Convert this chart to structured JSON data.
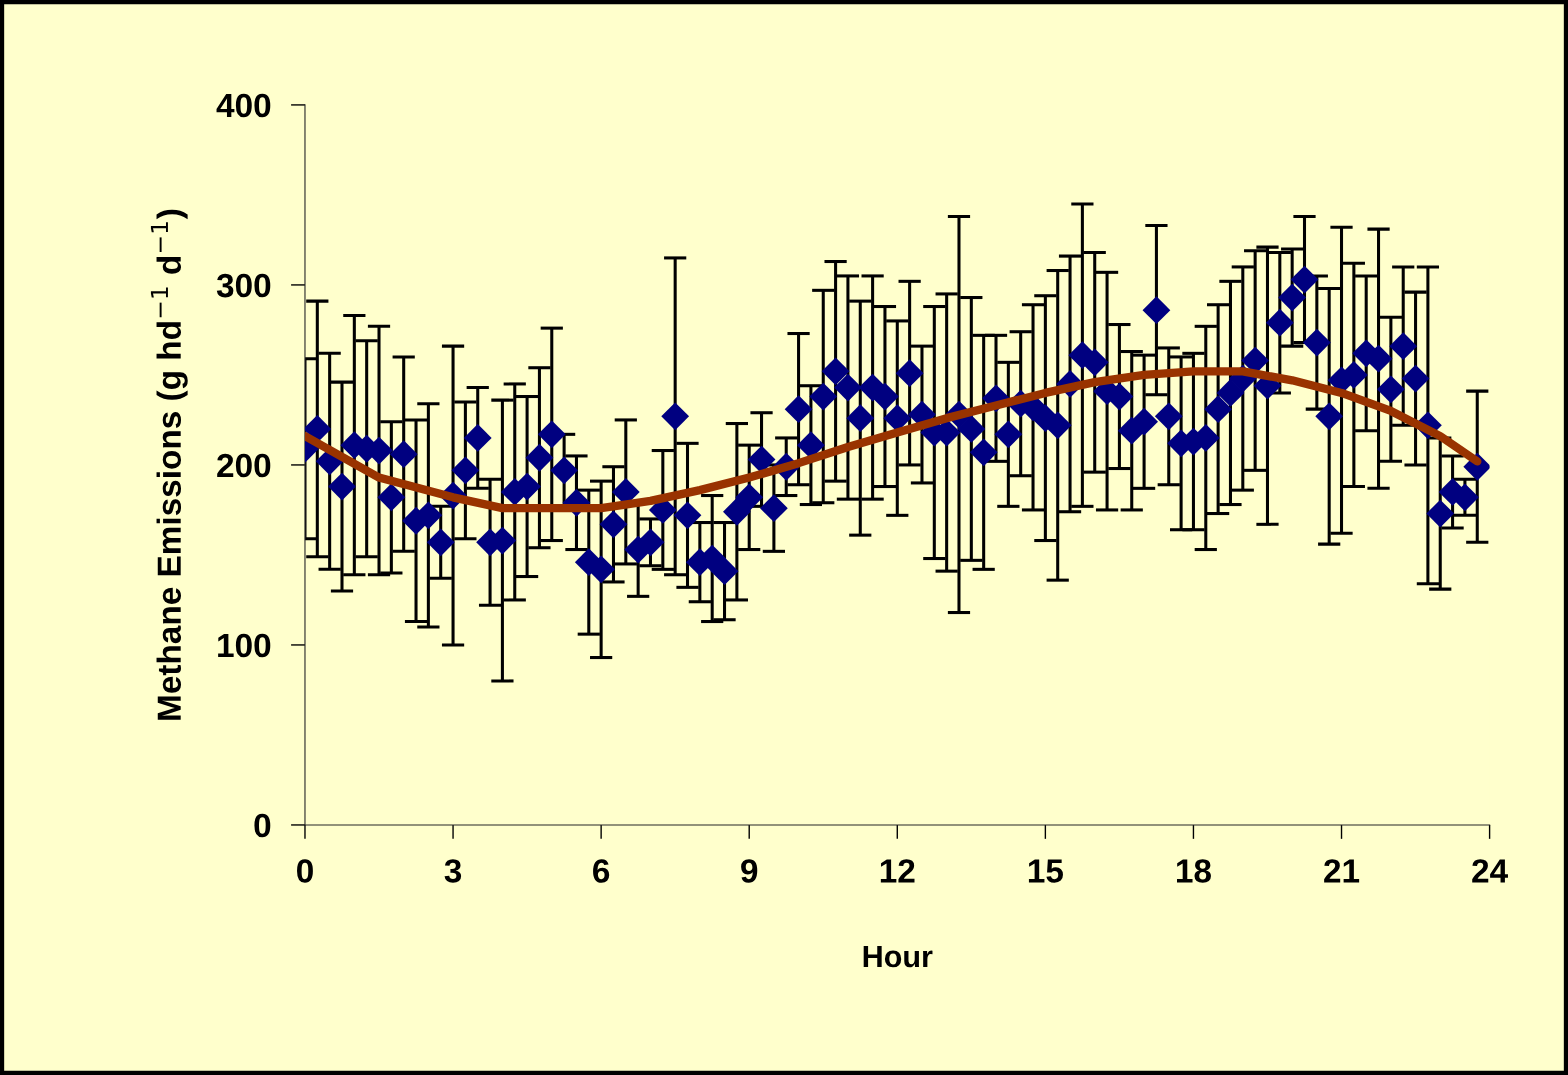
{
  "chart_data": {
    "type": "scatter",
    "xlabel": "Hour",
    "ylabel": "Methane Emissions (g hd$^{−1}$ d$^{−1}$)",
    "xlim": [
      0,
      24
    ],
    "ylim": [
      0,
      400
    ],
    "xticks": [
      0,
      3,
      6,
      9,
      12,
      15,
      18,
      21,
      24
    ],
    "yticks": [
      0,
      100,
      200,
      300,
      400
    ],
    "grid": false,
    "series": [
      {
        "color": "#000080",
        "marker": "diamond",
        "x": [
          0,
          0.25,
          0.5,
          0.75,
          1,
          1.25,
          1.5,
          1.75,
          2,
          2.25,
          2.5,
          2.75,
          3,
          3.25,
          3.5,
          3.75,
          4,
          4.25,
          4.5,
          4.75,
          5,
          5.25,
          5.5,
          5.75,
          6,
          6.25,
          6.5,
          6.75,
          7,
          7.25,
          7.5,
          7.75,
          8,
          8.25,
          8.5,
          8.75,
          9,
          9.25,
          9.5,
          9.75,
          10,
          10.25,
          10.5,
          10.75,
          11,
          11.25,
          11.5,
          11.75,
          12,
          12.25,
          12.5,
          12.75,
          13,
          13.25,
          13.5,
          13.75,
          14,
          14.25,
          14.5,
          14.75,
          15,
          15.25,
          15.5,
          15.75,
          16,
          16.25,
          16.5,
          16.75,
          17,
          17.25,
          17.5,
          17.75,
          18,
          18.25,
          18.5,
          18.75,
          19,
          19.25,
          19.5,
          19.75,
          20,
          20.25,
          20.5,
          20.75,
          21,
          21.25,
          21.5,
          21.75,
          22,
          22.25,
          22.5,
          22.75,
          23,
          23.25,
          23.5,
          23.75
        ],
        "values": [
          209,
          220,
          202,
          188,
          211,
          209,
          208,
          182,
          206,
          169,
          172,
          157,
          183,
          197,
          215,
          157,
          158,
          185,
          188,
          204,
          217,
          197,
          179,
          146,
          142,
          167,
          185,
          153,
          157,
          175,
          227,
          172,
          146,
          148,
          141,
          174,
          182,
          203,
          176,
          199,
          231,
          211,
          238,
          252,
          243,
          226,
          243,
          238,
          226,
          251,
          228,
          218,
          218,
          228,
          220,
          207,
          237,
          217,
          234,
          232,
          226,
          222,
          245,
          261,
          257,
          241,
          238,
          219,
          224,
          286,
          227,
          212,
          213,
          215,
          231,
          240,
          248,
          258,
          244,
          279,
          293,
          303,
          268,
          227,
          247,
          250,
          262,
          259,
          242,
          266,
          248,
          222,
          173,
          185,
          182,
          199
        ],
        "errors": [
          50,
          71,
          60,
          58,
          72,
          60,
          69,
          42,
          54,
          56,
          62,
          20,
          83,
          38,
          28,
          35,
          78,
          60,
          50,
          50,
          59,
          20,
          26,
          40,
          49,
          32,
          40,
          26,
          13,
          33,
          88,
          40,
          22,
          35,
          27,
          49,
          29,
          26,
          24,
          16,
          42,
          33,
          59,
          61,
          62,
          65,
          62,
          50,
          54,
          51,
          38,
          70,
          77,
          110,
          73,
          65,
          35,
          40,
          40,
          57,
          68,
          86,
          71,
          84,
          61,
          66,
          40,
          44,
          37,
          47,
          38,
          48,
          49,
          62,
          58,
          62,
          62,
          61,
          77,
          39,
          27,
          35,
          37,
          71,
          85,
          62,
          43,
          72,
          40,
          44,
          48,
          88,
          42,
          20,
          10,
          42
        ]
      },
      {
        "type": "line",
        "color": "#993300",
        "line_style": "solid",
        "marker": "none",
        "x": [
          0,
          1.5,
          3,
          4,
          6,
          7,
          8,
          9,
          10,
          11,
          12,
          13,
          14,
          15,
          16,
          17,
          18,
          19,
          20,
          21,
          22,
          23,
          23.75
        ],
        "values": [
          216,
          193,
          182,
          176,
          176,
          180,
          186,
          193,
          201,
          210,
          218,
          226,
          233,
          240,
          246,
          250,
          252,
          252,
          247,
          240,
          230,
          216,
          202
        ]
      }
    ]
  }
}
